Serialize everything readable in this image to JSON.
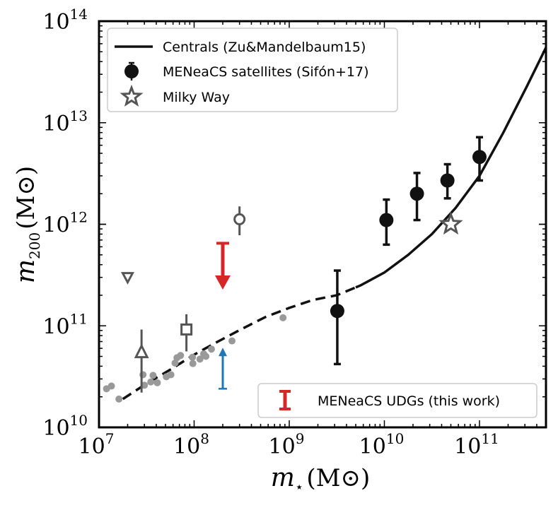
{
  "chart_data": {
    "type": "scatter",
    "xscale": "log",
    "yscale": "log",
    "xlim": [
      10000000,
      500000000000
    ],
    "ylim": [
      10000000000,
      100000000000000
    ],
    "xlabel": {
      "symbol": "m",
      "subscript": "⋆",
      "unit": "(M⊙)"
    },
    "ylabel": {
      "symbol": "m",
      "subscript": "200",
      "unit": "(M⊙)"
    },
    "x_ticks": [
      {
        "value": 10000000,
        "base": "10",
        "exp": "7"
      },
      {
        "value": 100000000,
        "base": "10",
        "exp": "8"
      },
      {
        "value": 1000000000,
        "base": "10",
        "exp": "9"
      },
      {
        "value": 10000000000,
        "base": "10",
        "exp": "10"
      },
      {
        "value": 100000000000,
        "base": "10",
        "exp": "11"
      }
    ],
    "y_ticks": [
      {
        "value": 10000000000,
        "base": "10",
        "exp": "10"
      },
      {
        "value": 100000000000,
        "base": "10",
        "exp": "11"
      },
      {
        "value": 1000000000000,
        "base": "10",
        "exp": "12"
      },
      {
        "value": 10000000000000,
        "base": "10",
        "exp": "13"
      },
      {
        "value": 100000000000000,
        "base": "10",
        "exp": "14"
      }
    ],
    "legend_top": [
      {
        "label": "Centrals (Zu&Mandelbaum15)",
        "marker": "line"
      },
      {
        "label": "MENeaCS satellites (Sifón+17)",
        "marker": "circle-errorbar"
      },
      {
        "label": "Milky Way",
        "marker": "star"
      }
    ],
    "legend_bottom": [
      {
        "label": "MENeaCS UDGs (this work)",
        "marker": "red-errorbar"
      }
    ],
    "colors": {
      "black": "#111111",
      "gray": "#555555",
      "light_gray": "#999999",
      "red": "#d62728",
      "blue": "#1f77b4"
    },
    "centrals_curve": [
      {
        "x": 17800000,
        "y": 19000000000
      },
      {
        "x": 31600000,
        "y": 27000000000
      },
      {
        "x": 56200000,
        "y": 37000000000
      },
      {
        "x": 100000000,
        "y": 52000000000
      },
      {
        "x": 178000000,
        "y": 70000000000
      },
      {
        "x": 316000000,
        "y": 93000000000
      },
      {
        "x": 562000000,
        "y": 122000000000
      },
      {
        "x": 1000000000,
        "y": 150000000000
      },
      {
        "x": 1780000000,
        "y": 180000000000
      },
      {
        "x": 3160000000,
        "y": 200000000000
      },
      {
        "x": 5620000000,
        "y": 250000000000
      },
      {
        "x": 10000000000,
        "y": 335000000000
      },
      {
        "x": 17800000000,
        "y": 500000000000
      },
      {
        "x": 31600000000,
        "y": 800000000000
      },
      {
        "x": 56200000000,
        "y": 1450000000000
      },
      {
        "x": 100000000000,
        "y": 3000000000000
      },
      {
        "x": 178000000000,
        "y": 8000000000000
      },
      {
        "x": 316000000000,
        "y": 23000000000000
      },
      {
        "x": 500000000000,
        "y": 55000000000000
      }
    ],
    "centrals_dash_end_x": 5000000000,
    "satellites": [
      {
        "x": 3200000000,
        "y": 140000000000,
        "ylo": 42000000000,
        "yhi": 350000000000
      },
      {
        "x": 10500000000,
        "y": 1100000000000,
        "ylo": 630000000000,
        "yhi": 1750000000000
      },
      {
        "x": 22000000000,
        "y": 2000000000000,
        "ylo": 1100000000000,
        "yhi": 3200000000000
      },
      {
        "x": 46000000000,
        "y": 2700000000000,
        "ylo": 1800000000000,
        "yhi": 3900000000000
      },
      {
        "x": 100000000000,
        "y": 4600000000000,
        "ylo": 2700000000000,
        "yhi": 7200000000000
      }
    ],
    "milky_way": {
      "x": 50000000000,
      "y": 1000000000000
    },
    "udg_red": {
      "x": 200000000,
      "ytop": 650000000000,
      "ybottom": 250000000000
    },
    "udg_blue": {
      "x": 200000000,
      "ybottom": 24000000000,
      "ytop": 58000000000
    },
    "gray_markers": [
      {
        "shape": "triangle-down",
        "x": 20000000,
        "y": 300000000000,
        "ylo": 270000000000,
        "yhi": 330000000000
      },
      {
        "shape": "triangle-up",
        "x": 28000000,
        "y": 55000000000,
        "ylo": 22000000000,
        "yhi": 92000000000
      },
      {
        "shape": "square",
        "x": 83000000,
        "y": 92000000000,
        "ylo": 56000000000,
        "yhi": 130000000000
      },
      {
        "shape": "circle-open",
        "x": 300000000,
        "y": 1120000000000,
        "ylo": 780000000000,
        "yhi": 1500000000000
      }
    ],
    "dwarfs": [
      {
        "x": 12000000,
        "y": 24000000000
      },
      {
        "x": 13500000,
        "y": 25500000000
      },
      {
        "x": 16200000,
        "y": 19000000000
      },
      {
        "x": 29000000,
        "y": 33000000000
      },
      {
        "x": 30000000,
        "y": 26000000000
      },
      {
        "x": 35000000,
        "y": 28000000000
      },
      {
        "x": 37000000,
        "y": 32500000000
      },
      {
        "x": 41000000,
        "y": 27500000000
      },
      {
        "x": 51000000,
        "y": 31500000000
      },
      {
        "x": 57000000,
        "y": 33000000000
      },
      {
        "x": 63000000,
        "y": 43000000000
      },
      {
        "x": 66000000,
        "y": 48500000000
      },
      {
        "x": 72000000,
        "y": 51000000000
      },
      {
        "x": 96000000,
        "y": 49000000000
      },
      {
        "x": 97000000,
        "y": 42500000000
      },
      {
        "x": 115000000,
        "y": 47000000000
      },
      {
        "x": 126000000,
        "y": 53000000000
      },
      {
        "x": 133000000,
        "y": 50000000000
      },
      {
        "x": 152000000,
        "y": 59000000000
      },
      {
        "x": 250000000,
        "y": 71000000000
      },
      {
        "x": 860000000,
        "y": 120000000000
      }
    ]
  }
}
